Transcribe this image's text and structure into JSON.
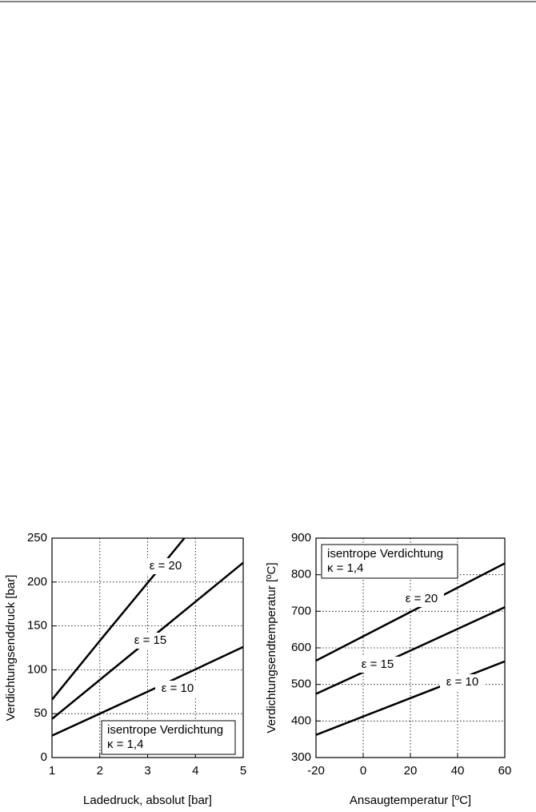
{
  "chart_data": [
    {
      "type": "line",
      "x_label": "Ladedruck, absolut [bar]",
      "y_label": "Verdichtungsenddruck [bar]",
      "annotation": [
        "isentrope Verdichtung",
        "κ = 1,4"
      ],
      "xlim": [
        1,
        5
      ],
      "xticks": [
        1,
        2,
        3,
        4,
        5
      ],
      "ylim": [
        0,
        250
      ],
      "yticks": [
        0,
        50,
        100,
        150,
        200,
        250
      ],
      "grid": true,
      "series": [
        {
          "name": "ε = 20",
          "color": "#000000",
          "x": [
            1,
            2,
            3,
            3.77
          ],
          "values": [
            66,
            133,
            199,
            250
          ]
        },
        {
          "name": "ε = 15",
          "color": "#000000",
          "x": [
            1,
            3,
            5
          ],
          "values": [
            44,
            133,
            222
          ]
        },
        {
          "name": "ε = 10",
          "color": "#000000",
          "x": [
            1,
            3,
            5
          ],
          "values": [
            25,
            75,
            126
          ]
        }
      ]
    },
    {
      "type": "line",
      "x_label": "Ansaugtemperatur [ºC]",
      "y_label": "Verdichtungsendtemperatur [ºC]",
      "annotation": [
        "isentrope Verdichtung",
        "κ = 1,4"
      ],
      "xlim": [
        -20,
        60
      ],
      "xticks": [
        -20,
        0,
        20,
        40,
        60
      ],
      "ylim": [
        300,
        900
      ],
      "yticks": [
        300,
        400,
        500,
        600,
        700,
        800,
        900
      ],
      "grid": true,
      "series": [
        {
          "name": "ε = 20",
          "color": "#000000",
          "x": [
            -20,
            60
          ],
          "values": [
            565,
            831
          ]
        },
        {
          "name": "ε = 15",
          "color": "#000000",
          "x": [
            -20,
            60
          ],
          "values": [
            474,
            711
          ]
        },
        {
          "name": "ε = 10",
          "color": "#000000",
          "x": [
            -20,
            60
          ],
          "values": [
            362,
            563
          ]
        }
      ]
    }
  ]
}
